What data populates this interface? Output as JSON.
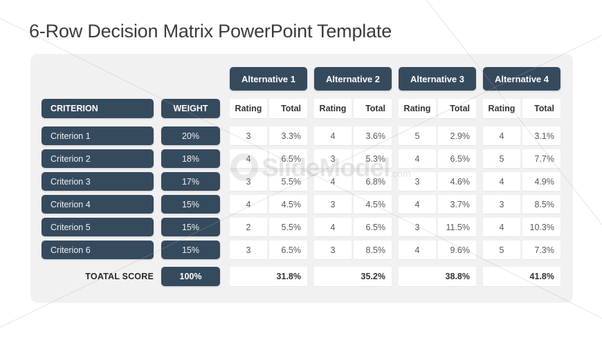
{
  "title": "6-Row Decision Matrix PowerPoint Template",
  "watermark": {
    "brand": "SlideModel",
    "suffix": ".com"
  },
  "table": {
    "criterion_header": "CRITERION",
    "weight_header": "WEIGHT",
    "sub_headers": {
      "rating": "Rating",
      "total": "Total"
    },
    "alternatives": [
      {
        "label": "Alternative 1"
      },
      {
        "label": "Alternative 2"
      },
      {
        "label": "Alternative 3"
      },
      {
        "label": "Alternative 4"
      }
    ],
    "rows": [
      {
        "criterion": "Criterion 1",
        "weight": "20%",
        "alts": [
          {
            "rating": "3",
            "total": "3.3%"
          },
          {
            "rating": "4",
            "total": "3.6%"
          },
          {
            "rating": "5",
            "total": "2.9%"
          },
          {
            "rating": "4",
            "total": "3.1%"
          }
        ]
      },
      {
        "criterion": "Criterion 2",
        "weight": "18%",
        "alts": [
          {
            "rating": "4",
            "total": "6.5%"
          },
          {
            "rating": "3",
            "total": "5.3%"
          },
          {
            "rating": "4",
            "total": "6.5%"
          },
          {
            "rating": "5",
            "total": "7.7%"
          }
        ]
      },
      {
        "criterion": "Criterion 3",
        "weight": "17%",
        "alts": [
          {
            "rating": "3",
            "total": "5.5%"
          },
          {
            "rating": "4",
            "total": "6.8%"
          },
          {
            "rating": "3",
            "total": "4.6%"
          },
          {
            "rating": "4",
            "total": "4.9%"
          }
        ]
      },
      {
        "criterion": "Criterion 4",
        "weight": "15%",
        "alts": [
          {
            "rating": "4",
            "total": "4.5%"
          },
          {
            "rating": "3",
            "total": "4.5%"
          },
          {
            "rating": "4",
            "total": "3.7%"
          },
          {
            "rating": "3",
            "total": "8.5%"
          }
        ]
      },
      {
        "criterion": "Criterion 5",
        "weight": "15%",
        "alts": [
          {
            "rating": "2",
            "total": "5.5%"
          },
          {
            "rating": "4",
            "total": "6.5%"
          },
          {
            "rating": "3",
            "total": "11.5%"
          },
          {
            "rating": "4",
            "total": "10.3%"
          }
        ]
      },
      {
        "criterion": "Criterion 6",
        "weight": "15%",
        "alts": [
          {
            "rating": "3",
            "total": "6.5%"
          },
          {
            "rating": "3",
            "total": "8.5%"
          },
          {
            "rating": "4",
            "total": "9.6%"
          },
          {
            "rating": "5",
            "total": "7.3%"
          }
        ]
      }
    ],
    "total_row": {
      "label": "TOATAL SCORE",
      "weight": "100%",
      "totals": [
        "31.8%",
        "35.2%",
        "38.8%",
        "41.8%"
      ]
    }
  },
  "colors": {
    "navy": "#364a5e",
    "card_bg": "#f1f1f2",
    "cell_bg": "#ffffff",
    "title_text": "#3b3b3b",
    "data_text": "#595959"
  }
}
